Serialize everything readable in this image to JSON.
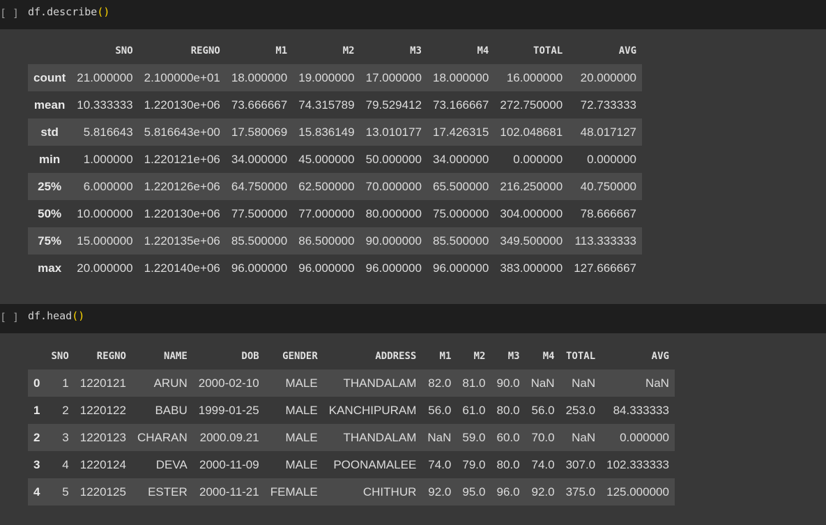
{
  "cell1": {
    "bracket": "[ ]",
    "code_prefix": "df.describe",
    "paren": "()"
  },
  "describe": {
    "columns": [
      "",
      "SNO",
      "REGNO",
      "M1",
      "M2",
      "M3",
      "M4",
      "TOTAL",
      "AVG"
    ],
    "rows": [
      {
        "label": "count",
        "values": [
          "21.000000",
          "2.100000e+01",
          "18.000000",
          "19.000000",
          "17.000000",
          "18.000000",
          "16.000000",
          "20.000000"
        ]
      },
      {
        "label": "mean",
        "values": [
          "10.333333",
          "1.220130e+06",
          "73.666667",
          "74.315789",
          "79.529412",
          "73.166667",
          "272.750000",
          "72.733333"
        ]
      },
      {
        "label": "std",
        "values": [
          "5.816643",
          "5.816643e+00",
          "17.580069",
          "15.836149",
          "13.010177",
          "17.426315",
          "102.048681",
          "48.017127"
        ]
      },
      {
        "label": "min",
        "values": [
          "1.000000",
          "1.220121e+06",
          "34.000000",
          "45.000000",
          "50.000000",
          "34.000000",
          "0.000000",
          "0.000000"
        ]
      },
      {
        "label": "25%",
        "values": [
          "6.000000",
          "1.220126e+06",
          "64.750000",
          "62.500000",
          "70.000000",
          "65.500000",
          "216.250000",
          "40.750000"
        ]
      },
      {
        "label": "50%",
        "values": [
          "10.000000",
          "1.220130e+06",
          "77.500000",
          "77.000000",
          "80.000000",
          "75.000000",
          "304.000000",
          "78.666667"
        ]
      },
      {
        "label": "75%",
        "values": [
          "15.000000",
          "1.220135e+06",
          "85.500000",
          "86.500000",
          "90.000000",
          "85.500000",
          "349.500000",
          "113.333333"
        ]
      },
      {
        "label": "max",
        "values": [
          "20.000000",
          "1.220140e+06",
          "96.000000",
          "96.000000",
          "96.000000",
          "96.000000",
          "383.000000",
          "127.666667"
        ]
      }
    ]
  },
  "cell2": {
    "bracket": "[ ]",
    "code_prefix": "df.head",
    "paren": "()"
  },
  "head": {
    "columns": [
      "",
      "SNO",
      "REGNO",
      "NAME",
      "DOB",
      "GENDER",
      "ADDRESS",
      "M1",
      "M2",
      "M3",
      "M4",
      "TOTAL",
      "AVG"
    ],
    "rows": [
      {
        "label": "0",
        "values": [
          "1",
          "1220121",
          "ARUN",
          "2000-02-10",
          "MALE",
          "THANDALAM",
          "82.0",
          "81.0",
          "90.0",
          "NaN",
          "NaN",
          "NaN"
        ]
      },
      {
        "label": "1",
        "values": [
          "2",
          "1220122",
          "BABU",
          "1999-01-25",
          "MALE",
          "KANCHIPURAM",
          "56.0",
          "61.0",
          "80.0",
          "56.0",
          "253.0",
          "84.333333"
        ]
      },
      {
        "label": "2",
        "values": [
          "3",
          "1220123",
          "CHARAN",
          "2000.09.21",
          "MALE",
          "THANDALAM",
          "NaN",
          "59.0",
          "60.0",
          "70.0",
          "NaN",
          "0.000000"
        ]
      },
      {
        "label": "3",
        "values": [
          "4",
          "1220124",
          "DEVA",
          "2000-11-09",
          "MALE",
          "POONAMALEE",
          "74.0",
          "79.0",
          "80.0",
          "74.0",
          "307.0",
          "102.333333"
        ]
      },
      {
        "label": "4",
        "values": [
          "5",
          "1220125",
          "ESTER",
          "2000-11-21",
          "FEMALE",
          "CHITHUR",
          "92.0",
          "95.0",
          "96.0",
          "92.0",
          "375.0",
          "125.000000"
        ]
      }
    ]
  }
}
